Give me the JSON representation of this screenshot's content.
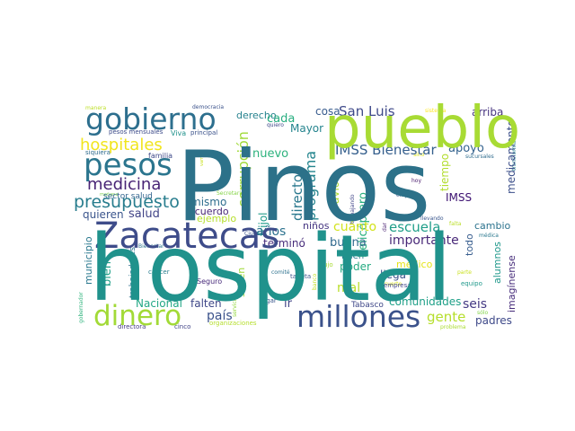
{
  "word_cloud": {
    "words": [
      {
        "text": "Pinos",
        "color": "#2c7189"
      },
      {
        "text": "hospital",
        "color": "#20928c"
      },
      {
        "text": "pueblo",
        "color": "#a8db34"
      },
      {
        "text": "Zacatecas",
        "color": "#3e4c8a"
      },
      {
        "text": "millones",
        "color": "#3b528b"
      },
      {
        "text": "gobierno",
        "color": "#2d6f8e"
      },
      {
        "text": "pesos",
        "color": "#2b758e"
      },
      {
        "text": "dinero",
        "color": "#a2da37"
      },
      {
        "text": "hospitales",
        "color": "#f1e51d"
      },
      {
        "text": "presupuesto",
        "color": "#287d8e"
      },
      {
        "text": "medicina",
        "color": "#482475"
      },
      {
        "text": "IMSS Bienestar",
        "color": "#355f8d"
      },
      {
        "text": "San Luis",
        "color": "#3e4989"
      },
      {
        "text": "corrupción",
        "color": "#a0da39"
      },
      {
        "text": "programa",
        "color": "#25858e"
      },
      {
        "text": "director",
        "color": "#2a788e"
      },
      {
        "text": "escuela",
        "color": "#1f9e89"
      },
      {
        "text": "importante",
        "color": "#482878"
      },
      {
        "text": "años",
        "color": "#2c728e"
      },
      {
        "text": "helicóptero",
        "color": "#2ab07f"
      },
      {
        "text": "medicamento",
        "color": "#3c4f8a"
      },
      {
        "text": "país",
        "color": "#3b528b"
      },
      {
        "text": "gente",
        "color": "#b5de2b"
      },
      {
        "text": "cuánto",
        "color": "#d2e21b"
      },
      {
        "text": "salud",
        "color": "#414487"
      },
      {
        "text": "mal",
        "color": "#b8de29"
      },
      {
        "text": "buena",
        "color": "#30698e"
      },
      {
        "text": "seis",
        "color": "#443983"
      },
      {
        "text": "comunidades",
        "color": "#1fa088"
      },
      {
        "text": "apoyo",
        "color": "#33628d"
      },
      {
        "text": "cada",
        "color": "#28ae80"
      },
      {
        "text": "Nacional",
        "color": "#22a785"
      },
      {
        "text": "falten",
        "color": "#3f4788"
      },
      {
        "text": "mismo",
        "color": "#2e6e8e"
      },
      {
        "text": "acuerdo",
        "color": "#482677"
      },
      {
        "text": "ejemplo",
        "color": "#b5de2b"
      },
      {
        "text": "quieren",
        "color": "#3a548c"
      },
      {
        "text": "sector salud",
        "color": "#32648e"
      },
      {
        "text": "nuevo",
        "color": "#2db27d"
      },
      {
        "text": "derecho",
        "color": "#26828e"
      },
      {
        "text": "cosa",
        "color": "#375b8d"
      },
      {
        "text": "Mayor",
        "color": "#25848e"
      },
      {
        "text": "arriba",
        "color": "#46337f"
      },
      {
        "text": "tiempo",
        "color": "#b2dd2d"
      },
      {
        "text": "IMSS",
        "color": "#3b0f70"
      },
      {
        "text": "avión",
        "color": "#addc30"
      },
      {
        "text": "frijol",
        "color": "#1e9b8a"
      },
      {
        "text": "niños",
        "color": "#453581"
      },
      {
        "text": "terminó",
        "color": "#472d7b"
      },
      {
        "text": "municipio",
        "color": "#2a788e"
      },
      {
        "text": "bien",
        "color": "#1fa088"
      },
      {
        "text": "trabajadores",
        "color": "#2c728e"
      },
      {
        "text": "saben",
        "color": "#a0da39"
      },
      {
        "text": "poder",
        "color": "#25ab82"
      },
      {
        "text": "llega",
        "color": "#3b528b"
      },
      {
        "text": "médico",
        "color": "#e5e419"
      },
      {
        "text": "todo",
        "color": "#365c8d"
      },
      {
        "text": "cambio",
        "color": "#2c738e"
      },
      {
        "text": "alumnos",
        "color": "#1f988b"
      },
      {
        "text": "imagínense",
        "color": "#472d7b"
      },
      {
        "text": "padres",
        "color": "#3e4989"
      },
      {
        "text": "buen",
        "color": "#2a788e"
      },
      {
        "text": "ir",
        "color": "#414487"
      },
      {
        "text": "Tabasco",
        "color": "#3f4788"
      },
      {
        "text": "familia",
        "color": "#3e4989"
      },
      {
        "text": "Viva",
        "color": "#20928c"
      },
      {
        "text": "principal",
        "color": "#3b528b"
      },
      {
        "text": "pesos mensuales",
        "color": "#3e4c8a"
      },
      {
        "text": "siquiera",
        "color": "#2f6b8e"
      },
      {
        "text": "manera",
        "color": "#bddf26"
      },
      {
        "text": "democracia",
        "color": "#3b528b"
      },
      {
        "text": "quiero",
        "color": "#3f4889"
      },
      {
        "text": "vamos",
        "color": "#c8e020"
      },
      {
        "text": "mañana",
        "color": "#7ad151"
      },
      {
        "text": "Secretaría",
        "color": "#86d549"
      },
      {
        "text": "trabajando",
        "color": "#404688"
      },
      {
        "text": "empezar",
        "color": "#3a548c"
      },
      {
        "text": "hoy",
        "color": "#481a6c"
      },
      {
        "text": "sino",
        "color": "#dde318"
      },
      {
        "text": "sistema",
        "color": "#fde725"
      },
      {
        "text": "transformación",
        "color": "#26828e"
      },
      {
        "text": "sucursales",
        "color": "#2f6c8e"
      },
      {
        "text": "llevando",
        "color": "#39568c"
      },
      {
        "text": "falta",
        "color": "#bade28"
      },
      {
        "text": "médica",
        "color": "#2a788e"
      },
      {
        "text": "Bienestar",
        "color": "#2c738e"
      },
      {
        "text": "Ciudad",
        "color": "#3a548c"
      },
      {
        "text": "dar",
        "color": "#481f71"
      },
      {
        "text": "comité",
        "color": "#2c718e"
      },
      {
        "text": "cáncer",
        "color": "#287d8e"
      },
      {
        "text": "lujo",
        "color": "#a8db34"
      },
      {
        "text": "tarjeta",
        "color": "#3b528b"
      },
      {
        "text": "banco",
        "color": "#c0df25"
      },
      {
        "text": "Seguro",
        "color": "#472a7a"
      },
      {
        "text": "empresa",
        "color": "#404588"
      },
      {
        "text": "suerte",
        "color": "#d8e219"
      },
      {
        "text": "parte",
        "color": "#cae11f"
      },
      {
        "text": "equipo",
        "color": "#1f988b"
      },
      {
        "text": "llegar",
        "color": "#39568c"
      },
      {
        "text": "problema",
        "color": "#aadc32"
      },
      {
        "text": "sólo",
        "color": "#84d44b"
      },
      {
        "text": "gobernador",
        "color": "#2eb37c"
      },
      {
        "text": "directora",
        "color": "#443a83"
      },
      {
        "text": "cinco",
        "color": "#414487"
      },
      {
        "text": "organizaciones",
        "color": "#b5de2b"
      },
      {
        "text": "servicios",
        "color": "#95d840"
      }
    ]
  }
}
